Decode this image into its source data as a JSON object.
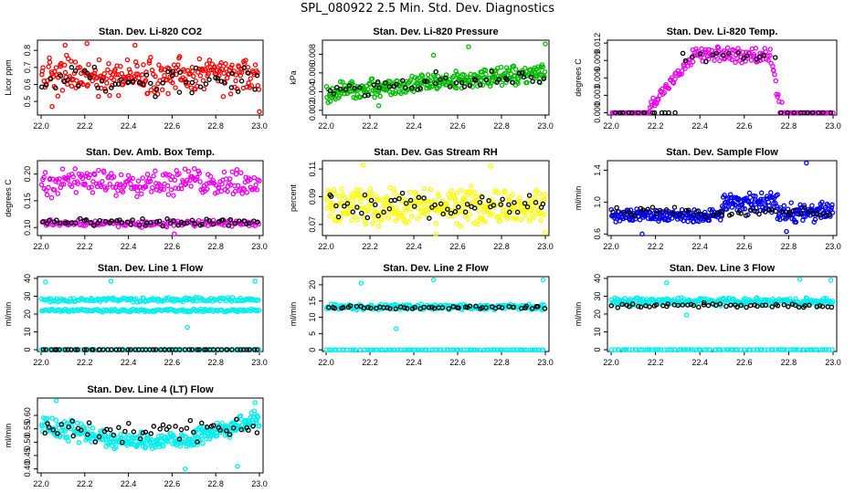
{
  "page": {
    "title": "SPL_080922  2.5 Min. Std. Dev. Diagnostics"
  },
  "chart_data": [
    {
      "type": "scatter",
      "title": "Stan. Dev. Li-820 CO2",
      "ylabel": "Licor ppm",
      "xlim": [
        22.0,
        23.0
      ],
      "ylim": [
        0.42,
        0.86
      ],
      "yticks": [
        "0.5",
        "0.6",
        "0.7",
        "0.8"
      ],
      "ytick_values": [
        0.5,
        0.6,
        0.7,
        0.8
      ],
      "color": "#ff0000",
      "pattern": [
        {
          "from": 22.0,
          "to": 23.0,
          "type": "band",
          "lo": 0.52,
          "hi": 0.78,
          "n": 260
        }
      ],
      "black_pattern": [
        {
          "from": 22.0,
          "to": 23.0,
          "type": "band",
          "lo": 0.52,
          "hi": 0.72,
          "n": 55
        }
      ],
      "outliers": [
        [
          22.05,
          0.47
        ],
        [
          22.43,
          0.83
        ],
        [
          22.11,
          0.83
        ],
        [
          23.0,
          0.44
        ],
        [
          22.21,
          0.84
        ]
      ]
    },
    {
      "type": "scatter",
      "title": "Stan. Dev. Li-820 Pressure",
      "ylabel": "kPa",
      "xlim": [
        22.0,
        23.0
      ],
      "ylim": [
        0.0015,
        0.0095
      ],
      "yticks": [
        "0.002",
        "0.004",
        "0.006",
        "0.008"
      ],
      "ytick_values": [
        0.002,
        0.004,
        0.006,
        0.008
      ],
      "color": "#00bb00",
      "pattern": [
        {
          "from": 22.0,
          "to": 23.0,
          "type": "trend",
          "lo_start": 0.0033,
          "lo_end": 0.0055,
          "width": 0.0023,
          "n": 320
        }
      ],
      "black_pattern": [
        {
          "from": 22.0,
          "to": 23.0,
          "type": "trend",
          "lo_start": 0.0035,
          "lo_end": 0.0055,
          "width": 0.0022,
          "n": 50
        }
      ],
      "outliers": [
        [
          23.0,
          0.0091
        ],
        [
          22.24,
          0.0025
        ],
        [
          22.65,
          0.0088
        ],
        [
          22.49,
          0.0079
        ]
      ]
    },
    {
      "type": "scatter",
      "title": "Stan. Dev. Li-820 Temp.",
      "ylabel": "degrees C",
      "xlim": [
        22.0,
        23.0
      ],
      "ylim": [
        -0.0004,
        0.0125
      ],
      "yticks": [
        "0.000",
        "0.003",
        "0.006",
        "0.009",
        "0.012"
      ],
      "ytick_values": [
        0,
        0.003,
        0.006,
        0.009,
        0.012
      ],
      "color": "#ee00ee",
      "pattern": [
        {
          "from": 22.0,
          "to": 22.17,
          "type": "band",
          "lo": 0.0,
          "hi": 0.0,
          "n": 30
        },
        {
          "from": 22.17,
          "to": 22.36,
          "type": "ramp",
          "lo_start": 0.001,
          "lo_end": 0.009,
          "width": 0.0018,
          "n": 45
        },
        {
          "from": 22.36,
          "to": 22.72,
          "type": "band",
          "lo": 0.0085,
          "hi": 0.0115,
          "n": 90
        },
        {
          "from": 22.72,
          "to": 22.76,
          "type": "ramp",
          "lo_start": 0.008,
          "lo_end": 0.001,
          "width": 0.003,
          "n": 10
        },
        {
          "from": 22.76,
          "to": 23.0,
          "type": "band",
          "lo": 0.0,
          "hi": 0.0,
          "n": 35
        }
      ],
      "black_pattern": [
        {
          "from": 22.0,
          "to": 22.3,
          "type": "band",
          "lo": 0.0,
          "hi": 0.0,
          "n": 14
        },
        {
          "from": 22.3,
          "to": 22.74,
          "type": "band",
          "lo": 0.0085,
          "hi": 0.011,
          "n": 16
        },
        {
          "from": 22.76,
          "to": 23.0,
          "type": "band",
          "lo": 0.0,
          "hi": 0.0,
          "n": 10
        }
      ],
      "outliers": [
        [
          22.77,
          0.0018
        ]
      ]
    },
    {
      "type": "scatter",
      "title": "Stan. Dev. Amb. Box Temp.",
      "ylabel": "degrees C",
      "xlim": [
        22.0,
        23.0
      ],
      "ylim": [
        0.085,
        0.225
      ],
      "yticks": [
        "0.10",
        "0.15",
        "0.20"
      ],
      "ytick_values": [
        0.1,
        0.15,
        0.2
      ],
      "color": "#ee00ee",
      "pattern": [
        {
          "from": 22.0,
          "to": 23.0,
          "type": "band",
          "lo": 0.155,
          "hi": 0.215,
          "n": 220
        },
        {
          "from": 22.0,
          "to": 23.0,
          "type": "band",
          "lo": 0.1,
          "hi": 0.115,
          "n": 160
        }
      ],
      "black_pattern": [
        {
          "from": 22.0,
          "to": 23.0,
          "type": "band",
          "lo": 0.1,
          "hi": 0.118,
          "n": 60
        }
      ],
      "outliers": [
        [
          22.61,
          0.088
        ]
      ]
    },
    {
      "type": "scatter",
      "title": "Stan. Dev. Gas Stream RH",
      "ylabel": "percent",
      "xlim": [
        22.0,
        23.0
      ],
      "ylim": [
        0.062,
        0.116
      ],
      "yticks": [
        "0.07",
        "0.09",
        "0.11"
      ],
      "ytick_values": [
        0.07,
        0.09,
        0.11
      ],
      "color": "#ffff00",
      "pattern": [
        {
          "from": 22.0,
          "to": 23.0,
          "type": "band",
          "lo": 0.068,
          "hi": 0.098,
          "n": 340
        }
      ],
      "black_pattern": [
        {
          "from": 22.0,
          "to": 23.0,
          "type": "band",
          "lo": 0.072,
          "hi": 0.094,
          "n": 55
        }
      ],
      "outliers": [
        [
          22.17,
          0.113
        ],
        [
          22.75,
          0.112
        ],
        [
          22.5,
          0.063
        ],
        [
          23.0,
          0.064
        ]
      ]
    },
    {
      "type": "scatter",
      "title": "Stan. Dev. Sample Flow",
      "ylabel": "ml/min",
      "xlim": [
        22.0,
        23.0
      ],
      "ylim": [
        0.58,
        1.52
      ],
      "yticks": [
        "0.6",
        "1.0",
        "1.4"
      ],
      "ytick_values": [
        0.6,
        1.0,
        1.4
      ],
      "color": "#0000ee",
      "pattern": [
        {
          "from": 22.0,
          "to": 22.5,
          "type": "band",
          "lo": 0.74,
          "hi": 0.92,
          "n": 170
        },
        {
          "from": 22.5,
          "to": 22.75,
          "type": "band",
          "lo": 0.82,
          "hi": 1.15,
          "n": 90
        },
        {
          "from": 22.75,
          "to": 23.0,
          "type": "band",
          "lo": 0.72,
          "hi": 1.02,
          "n": 90
        }
      ],
      "black_pattern": [
        {
          "from": 22.0,
          "to": 23.0,
          "type": "band",
          "lo": 0.8,
          "hi": 0.95,
          "n": 50
        }
      ],
      "outliers": [
        [
          22.88,
          1.49
        ],
        [
          22.14,
          0.6
        ],
        [
          22.79,
          0.63
        ]
      ]
    },
    {
      "type": "scatter",
      "title": "Stan. Dev. Line 1 Flow",
      "ylabel": "ml/min",
      "xlim": [
        22.0,
        23.0
      ],
      "ylim": [
        -1,
        41
      ],
      "yticks": [
        "0",
        "10",
        "20",
        "30",
        "40"
      ],
      "ytick_values": [
        0,
        10,
        20,
        30,
        40
      ],
      "color": "#00eeee",
      "pattern": [
        {
          "from": 22.0,
          "to": 23.0,
          "type": "band",
          "lo": 26.5,
          "hi": 29.5,
          "n": 160
        },
        {
          "from": 22.0,
          "to": 23.0,
          "type": "band",
          "lo": 21.0,
          "hi": 23.0,
          "n": 150
        },
        {
          "from": 22.0,
          "to": 23.0,
          "type": "band",
          "lo": 0.0,
          "hi": 0.0,
          "n": 90
        }
      ],
      "black_pattern": [
        {
          "from": 22.0,
          "to": 23.0,
          "type": "band",
          "lo": 0.0,
          "hi": 0.0,
          "n": 60
        }
      ],
      "outliers": [
        [
          22.67,
          12.5
        ],
        [
          22.32,
          38.5
        ],
        [
          22.98,
          38.5
        ],
        [
          22.02,
          38.0
        ]
      ]
    },
    {
      "type": "scatter",
      "title": "Stan. Dev. Line 2 Flow",
      "ylabel": "ml/min",
      "xlim": [
        22.0,
        23.0
      ],
      "ylim": [
        -0.5,
        22.5
      ],
      "yticks": [
        "0",
        "5",
        "10",
        "15",
        "20"
      ],
      "ytick_values": [
        0,
        5,
        10,
        15,
        20
      ],
      "color": "#00eeee",
      "pattern": [
        {
          "from": 22.0,
          "to": 23.0,
          "type": "band",
          "lo": 12.2,
          "hi": 14.2,
          "n": 260
        },
        {
          "from": 22.0,
          "to": 23.0,
          "type": "band",
          "lo": 0.0,
          "hi": 0.0,
          "n": 90
        }
      ],
      "black_pattern": [
        {
          "from": 22.0,
          "to": 23.0,
          "type": "band",
          "lo": 12.4,
          "hi": 13.6,
          "n": 55
        }
      ],
      "outliers": [
        [
          22.32,
          6.5
        ],
        [
          22.16,
          20.5
        ],
        [
          22.99,
          21.5
        ],
        [
          22.49,
          21.5
        ]
      ]
    },
    {
      "type": "scatter",
      "title": "Stan. Dev. Line 3 Flow",
      "ylabel": "ml/min",
      "xlim": [
        22.0,
        23.0
      ],
      "ylim": [
        -1,
        41
      ],
      "yticks": [
        "0",
        "10",
        "20",
        "30",
        "40"
      ],
      "ytick_values": [
        0,
        10,
        20,
        30,
        40
      ],
      "color": "#00eeee",
      "pattern": [
        {
          "from": 22.0,
          "to": 23.0,
          "type": "band",
          "lo": 24.5,
          "hi": 29.5,
          "n": 270
        },
        {
          "from": 22.0,
          "to": 23.0,
          "type": "band",
          "lo": 0.0,
          "hi": 0.0,
          "n": 90
        }
      ],
      "black_pattern": [
        {
          "from": 22.0,
          "to": 23.0,
          "type": "band",
          "lo": 23.5,
          "hi": 26.5,
          "n": 55
        }
      ],
      "outliers": [
        [
          22.34,
          19.5
        ],
        [
          22.25,
          37.5
        ],
        [
          22.85,
          39.5
        ],
        [
          22.99,
          39.0
        ]
      ]
    },
    {
      "type": "scatter",
      "title": "Stan. Dev. Line 4 (LT) Flow",
      "ylabel": "ml/min",
      "xlim": [
        22.0,
        23.0
      ],
      "ylim": [
        0.385,
        0.665
      ],
      "yticks": [
        "0.40",
        "0.45",
        "0.50",
        "0.55",
        "0.60"
      ],
      "ytick_values": [
        0.4,
        0.45,
        0.5,
        0.55,
        0.6
      ],
      "color": "#00eeee",
      "pattern": [
        {
          "from": 22.0,
          "to": 22.3,
          "type": "trend",
          "lo_start": 0.54,
          "lo_end": 0.49,
          "width": 0.09,
          "n": 95
        },
        {
          "from": 22.3,
          "to": 22.7,
          "type": "band",
          "lo": 0.47,
          "hi": 0.54,
          "n": 130
        },
        {
          "from": 22.7,
          "to": 23.0,
          "type": "trend",
          "lo_start": 0.5,
          "lo_end": 0.56,
          "width": 0.09,
          "n": 110
        }
      ],
      "black_pattern": [
        {
          "from": 22.0,
          "to": 23.0,
          "type": "band",
          "lo": 0.49,
          "hi": 0.6,
          "n": 55
        }
      ],
      "outliers": [
        [
          22.07,
          0.655
        ],
        [
          22.66,
          0.4
        ],
        [
          22.98,
          0.648
        ],
        [
          22.9,
          0.41
        ]
      ]
    }
  ],
  "shared": {
    "xticks": [
      "22.0",
      "22.2",
      "22.4",
      "22.6",
      "22.8",
      "23.0"
    ],
    "xtick_values": [
      22.0,
      22.2,
      22.4,
      22.6,
      22.8,
      23.0
    ],
    "overlay_color": "#000000"
  }
}
